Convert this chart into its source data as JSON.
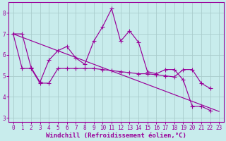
{
  "background_color": "#c8ecec",
  "grid_color": "#b8dada",
  "line_color": "#990099",
  "xlabel": "Windchill (Refroidissement éolien,°C)",
  "xlabel_fontsize": 6.5,
  "xlim": [
    -0.5,
    23.5
  ],
  "ylim": [
    2.8,
    8.5
  ],
  "yticks": [
    3,
    4,
    5,
    6,
    7,
    8
  ],
  "xticks": [
    0,
    1,
    2,
    3,
    4,
    5,
    6,
    7,
    8,
    9,
    10,
    11,
    12,
    13,
    14,
    15,
    16,
    17,
    18,
    19,
    20,
    21,
    22,
    23
  ],
  "tick_fontsize": 5.5,
  "line1_x": [
    0,
    1,
    2,
    3,
    4,
    5,
    6,
    7,
    8,
    9,
    10,
    11,
    12,
    13,
    14,
    15,
    16,
    17,
    18,
    19,
    20,
    21,
    22,
    23
  ],
  "line1_y": [
    7.0,
    7.0,
    5.4,
    4.7,
    5.75,
    6.2,
    6.4,
    5.85,
    5.55,
    6.65,
    7.35,
    8.2,
    6.65,
    7.15,
    6.6,
    5.2,
    5.1,
    5.3,
    5.3,
    4.8,
    3.55,
    3.55,
    3.35,
    null
  ],
  "line2_x": [
    0,
    1,
    2,
    3,
    4,
    5,
    6,
    7,
    8,
    9,
    10,
    11,
    12,
    13,
    14,
    15,
    16,
    17,
    18,
    19,
    20,
    21,
    22,
    23
  ],
  "line2_y": [
    7.0,
    5.35,
    5.35,
    4.65,
    4.65,
    5.35,
    5.35,
    5.35,
    5.35,
    5.35,
    5.3,
    5.25,
    5.2,
    5.15,
    5.1,
    5.1,
    5.05,
    5.0,
    4.95,
    5.3,
    5.3,
    4.65,
    4.4,
    null
  ],
  "line3_x": [
    0,
    23
  ],
  "line3_y": [
    7.0,
    3.3
  ]
}
